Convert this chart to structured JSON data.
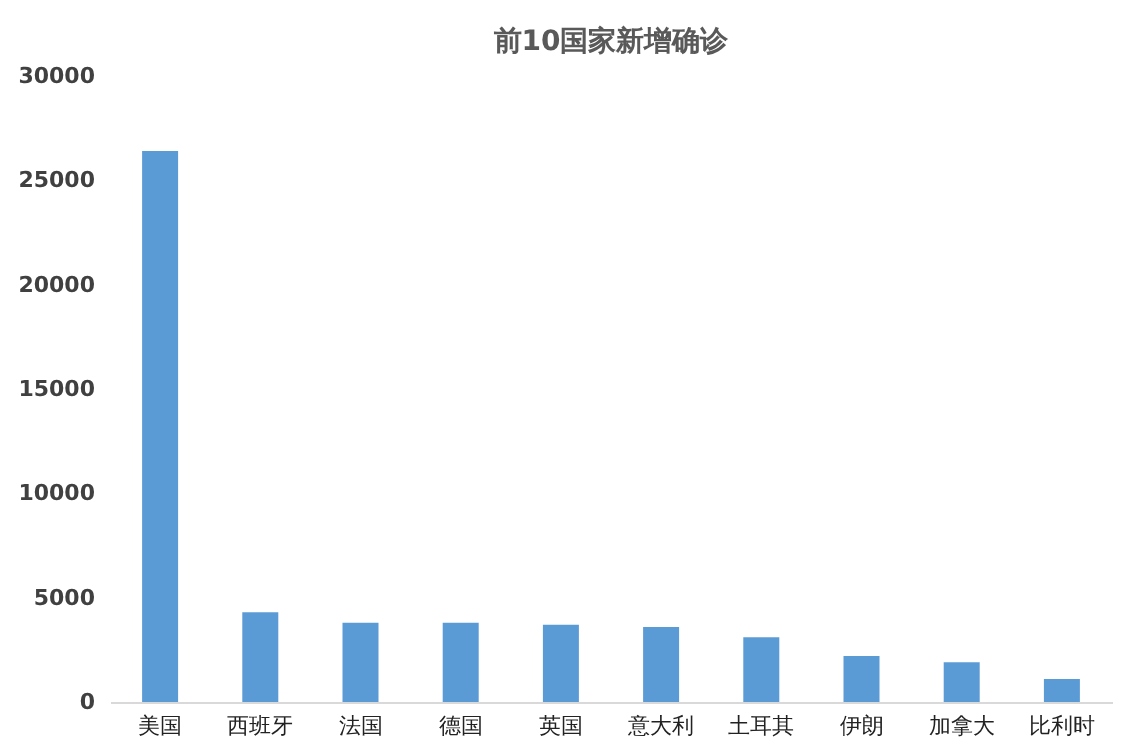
{
  "chart_data": {
    "type": "bar",
    "title": "前10国家新增确诊",
    "categories": [
      "美国",
      "西班牙",
      "法国",
      "德国",
      "英国",
      "意大利",
      "土耳其",
      "伊朗",
      "加拿大",
      "比利时"
    ],
    "values": [
      26400,
      4300,
      3800,
      3800,
      3700,
      3600,
      3100,
      2200,
      1900,
      1100
    ],
    "color": "#5b9bd5",
    "ylim": [
      0,
      30000
    ],
    "yticks": [
      0,
      5000,
      10000,
      15000,
      20000,
      25000,
      30000
    ],
    "grid": false
  }
}
